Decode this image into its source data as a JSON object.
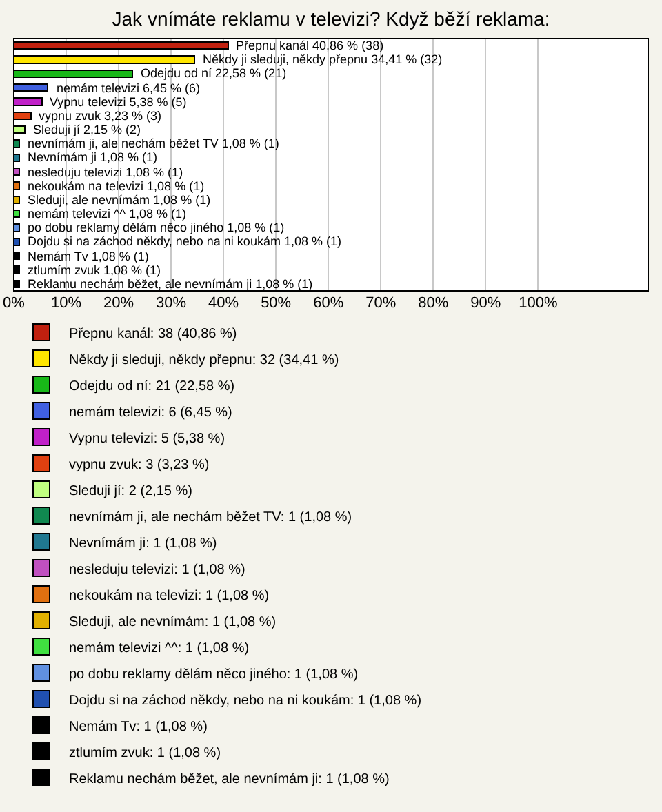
{
  "chart_data": {
    "type": "bar",
    "title": "Jak vnímáte reklamu v televizi? Když běží reklama:",
    "orientation": "horizontal",
    "stacked": true,
    "grid": "x",
    "legend": "bottom",
    "tick_labels": "x",
    "categories": [
      null,
      null,
      null,
      null,
      null,
      null,
      null,
      null,
      null,
      null,
      null,
      null,
      null,
      null,
      null,
      null,
      null,
      null
    ],
    "xlim": [
      0,
      121
    ],
    "xticks": [
      {
        "value": 0,
        "label": "0%"
      },
      {
        "value": 10,
        "label": "10%"
      },
      {
        "value": 20,
        "label": "20%"
      },
      {
        "value": 30,
        "label": "30%"
      },
      {
        "value": 40,
        "label": "40%"
      },
      {
        "value": 50,
        "label": "50%"
      },
      {
        "value": 60,
        "label": "60%"
      },
      {
        "value": 70,
        "label": "70%"
      },
      {
        "value": 80,
        "label": "80%"
      },
      {
        "value": 90,
        "label": "90%"
      },
      {
        "value": 100,
        "label": "100%"
      }
    ],
    "series": [
      {
        "name": "Přepnu kanál: 38 (40,86 %)",
        "color": "#c0200f",
        "values": [
          40.86,
          null,
          null,
          null,
          null,
          null,
          null,
          null,
          null,
          null,
          null,
          null,
          null,
          null,
          null,
          null,
          null,
          null
        ],
        "value_labels": [
          "Přepnu kanál 40,86 % (38)",
          null,
          null,
          null,
          null,
          null,
          null,
          null,
          null,
          null,
          null,
          null,
          null,
          null,
          null,
          null,
          null,
          null
        ]
      },
      {
        "name": "Někdy ji sleduji, někdy přepnu: 32 (34,41 %)",
        "color": "#ffe600",
        "values": [
          null,
          34.41,
          null,
          null,
          null,
          null,
          null,
          null,
          null,
          null,
          null,
          null,
          null,
          null,
          null,
          null,
          null,
          null
        ],
        "value_labels": [
          null,
          "Někdy ji sleduji, někdy přepnu 34,41 % (32)",
          null,
          null,
          null,
          null,
          null,
          null,
          null,
          null,
          null,
          null,
          null,
          null,
          null,
          null,
          null,
          null
        ]
      },
      {
        "name": "Odejdu od ní: 21 (22,58 %)",
        "color": "#18b818",
        "values": [
          null,
          null,
          22.58,
          null,
          null,
          null,
          null,
          null,
          null,
          null,
          null,
          null,
          null,
          null,
          null,
          null,
          null,
          null
        ],
        "value_labels": [
          null,
          null,
          "Odejdu od ní 22,58 % (21)",
          null,
          null,
          null,
          null,
          null,
          null,
          null,
          null,
          null,
          null,
          null,
          null,
          null,
          null,
          null
        ]
      },
      {
        "name": "nemám televizi: 6 (6,45 %)",
        "color": "#4060e0",
        "values": [
          null,
          null,
          null,
          6.45,
          null,
          null,
          null,
          null,
          null,
          null,
          null,
          null,
          null,
          null,
          null,
          null,
          null,
          null
        ],
        "value_labels": [
          null,
          null,
          null,
          "nemám televizi 6,45 % (6)",
          null,
          null,
          null,
          null,
          null,
          null,
          null,
          null,
          null,
          null,
          null,
          null,
          null,
          null
        ]
      },
      {
        "name": "Vypnu televizi: 5 (5,38 %)",
        "color": "#c020c8",
        "values": [
          null,
          null,
          null,
          null,
          5.38,
          null,
          null,
          null,
          null,
          null,
          null,
          null,
          null,
          null,
          null,
          null,
          null,
          null
        ],
        "value_labels": [
          null,
          null,
          null,
          null,
          "Vypnu televizi 5,38 % (5)",
          null,
          null,
          null,
          null,
          null,
          null,
          null,
          null,
          null,
          null,
          null,
          null,
          null
        ]
      },
      {
        "name": "vypnu zvuk: 3 (3,23 %)",
        "color": "#e04010",
        "values": [
          null,
          null,
          null,
          null,
          null,
          3.23,
          null,
          null,
          null,
          null,
          null,
          null,
          null,
          null,
          null,
          null,
          null,
          null
        ],
        "value_labels": [
          null,
          null,
          null,
          null,
          null,
          "vypnu zvuk 3,23 % (3)",
          null,
          null,
          null,
          null,
          null,
          null,
          null,
          null,
          null,
          null,
          null,
          null
        ]
      },
      {
        "name": "Sleduji jí: 2 (2,15 %)",
        "color": "#c0ff80",
        "values": [
          null,
          null,
          null,
          null,
          null,
          null,
          2.15,
          null,
          null,
          null,
          null,
          null,
          null,
          null,
          null,
          null,
          null,
          null
        ],
        "value_labels": [
          null,
          null,
          null,
          null,
          null,
          null,
          "Sleduji jí 2,15 % (2)",
          null,
          null,
          null,
          null,
          null,
          null,
          null,
          null,
          null,
          null,
          null
        ]
      },
      {
        "name": "nevnímám ji, ale nechám běžet TV: 1 (1,08 %)",
        "color": "#108850",
        "values": [
          null,
          null,
          null,
          null,
          null,
          null,
          null,
          1.08,
          null,
          null,
          null,
          null,
          null,
          null,
          null,
          null,
          null,
          null
        ],
        "value_labels": [
          null,
          null,
          null,
          null,
          null,
          null,
          null,
          "nevnímám ji, ale nechám běžet TV 1,08 % (1)",
          null,
          null,
          null,
          null,
          null,
          null,
          null,
          null,
          null,
          null
        ]
      },
      {
        "name": "Nevnímám ji: 1 (1,08 %)",
        "color": "#207890",
        "values": [
          null,
          null,
          null,
          null,
          null,
          null,
          null,
          null,
          1.08,
          null,
          null,
          null,
          null,
          null,
          null,
          null,
          null,
          null
        ],
        "value_labels": [
          null,
          null,
          null,
          null,
          null,
          null,
          null,
          null,
          "Nevnímám ji 1,08 % (1)",
          null,
          null,
          null,
          null,
          null,
          null,
          null,
          null,
          null
        ]
      },
      {
        "name": "nesleduju televizi: 1 (1,08 %)",
        "color": "#c050c0",
        "values": [
          null,
          null,
          null,
          null,
          null,
          null,
          null,
          null,
          null,
          1.08,
          null,
          null,
          null,
          null,
          null,
          null,
          null,
          null
        ],
        "value_labels": [
          null,
          null,
          null,
          null,
          null,
          null,
          null,
          null,
          null,
          "nesleduju televizi 1,08 % (1)",
          null,
          null,
          null,
          null,
          null,
          null,
          null,
          null
        ]
      },
      {
        "name": "nekoukám na televizi: 1 (1,08 %)",
        "color": "#e07010",
        "values": [
          null,
          null,
          null,
          null,
          null,
          null,
          null,
          null,
          null,
          null,
          1.08,
          null,
          null,
          null,
          null,
          null,
          null,
          null
        ],
        "value_labels": [
          null,
          null,
          null,
          null,
          null,
          null,
          null,
          null,
          null,
          null,
          "nekoukám na televizi 1,08 % (1)",
          null,
          null,
          null,
          null,
          null,
          null,
          null
        ]
      },
      {
        "name": "Sleduji, ale nevnímám: 1 (1,08 %)",
        "color": "#e0b000",
        "values": [
          null,
          null,
          null,
          null,
          null,
          null,
          null,
          null,
          null,
          null,
          null,
          1.08,
          null,
          null,
          null,
          null,
          null,
          null
        ],
        "value_labels": [
          null,
          null,
          null,
          null,
          null,
          null,
          null,
          null,
          null,
          null,
          null,
          "Sleduji, ale nevnímám 1,08 % (1)",
          null,
          null,
          null,
          null,
          null,
          null
        ]
      },
      {
        "name": "nemám televizi ^^: 1 (1,08 %)",
        "color": "#40e040",
        "values": [
          null,
          null,
          null,
          null,
          null,
          null,
          null,
          null,
          null,
          null,
          null,
          null,
          1.08,
          null,
          null,
          null,
          null,
          null
        ],
        "value_labels": [
          null,
          null,
          null,
          null,
          null,
          null,
          null,
          null,
          null,
          null,
          null,
          null,
          "nemám televizi ^^ 1,08 % (1)",
          null,
          null,
          null,
          null,
          null
        ]
      },
      {
        "name": "po dobu reklamy dělám něco jiného: 1 (1,08 %)",
        "color": "#6090e0",
        "values": [
          null,
          null,
          null,
          null,
          null,
          null,
          null,
          null,
          null,
          null,
          null,
          null,
          null,
          1.08,
          null,
          null,
          null,
          null
        ],
        "value_labels": [
          null,
          null,
          null,
          null,
          null,
          null,
          null,
          null,
          null,
          null,
          null,
          null,
          null,
          "po dobu reklamy dělám něco jiného 1,08 % (1)",
          null,
          null,
          null,
          null
        ]
      },
      {
        "name": "Dojdu si na záchod někdy, nebo na ni koukám: 1 (1,08 %)",
        "color": "#2050b0",
        "values": [
          null,
          null,
          null,
          null,
          null,
          null,
          null,
          null,
          null,
          null,
          null,
          null,
          null,
          null,
          1.08,
          null,
          null,
          null
        ],
        "value_labels": [
          null,
          null,
          null,
          null,
          null,
          null,
          null,
          null,
          null,
          null,
          null,
          null,
          null,
          null,
          "Dojdu si na záchod někdy, nebo na ni koukám 1,08 % (1)",
          null,
          null,
          null
        ]
      },
      {
        "name": "Nemám Tv: 1 (1,08 %)",
        "color": "#000000",
        "values": [
          null,
          null,
          null,
          null,
          null,
          null,
          null,
          null,
          null,
          null,
          null,
          null,
          null,
          null,
          null,
          1.08,
          null,
          null
        ],
        "value_labels": [
          null,
          null,
          null,
          null,
          null,
          null,
          null,
          null,
          null,
          null,
          null,
          null,
          null,
          null,
          null,
          "Nemám Tv 1,08 % (1)",
          null,
          null
        ]
      },
      {
        "name": "ztlumím zvuk: 1 (1,08 %)",
        "color": "#000000",
        "values": [
          null,
          null,
          null,
          null,
          null,
          null,
          null,
          null,
          null,
          null,
          null,
          null,
          null,
          null,
          null,
          null,
          1.08,
          null
        ],
        "value_labels": [
          null,
          null,
          null,
          null,
          null,
          null,
          null,
          null,
          null,
          null,
          null,
          null,
          null,
          null,
          null,
          null,
          "ztlumím zvuk 1,08 % (1)",
          null
        ]
      },
      {
        "name": "Reklamu nechám běžet, ale nevnímám ji: 1 (1,08 %)",
        "color": "#000000",
        "values": [
          null,
          null,
          null,
          null,
          null,
          null,
          null,
          null,
          null,
          null,
          null,
          null,
          null,
          null,
          null,
          null,
          null,
          1.08
        ],
        "value_labels": [
          null,
          null,
          null,
          null,
          null,
          null,
          null,
          null,
          null,
          null,
          null,
          null,
          null,
          null,
          null,
          null,
          null,
          "Reklamu nechám běžet, ale nevnímám ji 1,08 % (1)"
        ]
      }
    ]
  }
}
